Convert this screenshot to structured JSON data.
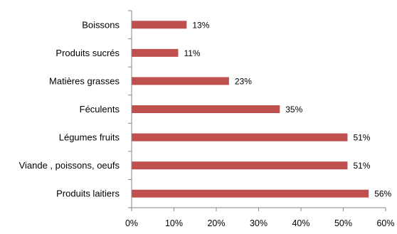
{
  "chart_data": {
    "type": "bar",
    "orientation": "horizontal",
    "categories": [
      "Boissons",
      "Produits sucrés",
      "Matières grasses",
      "Féculents",
      "Légumes fruits",
      "Viande , poissons, oeufs",
      "Produits laitiers"
    ],
    "values": [
      13,
      11,
      23,
      35,
      51,
      51,
      56
    ],
    "data_labels": [
      "13%",
      "11%",
      "23%",
      "35%",
      "51%",
      "51%",
      "56%"
    ],
    "xlim": [
      0,
      60
    ],
    "x_ticks": [
      0,
      10,
      20,
      30,
      40,
      50,
      60
    ],
    "x_tick_labels": [
      "0%",
      "10%",
      "20%",
      "30%",
      "40%",
      "50%",
      "60%"
    ],
    "title": "",
    "xlabel": "",
    "ylabel": "",
    "grid": false,
    "legend": "none",
    "bar_color": "#c0504d",
    "axis_color": "#868686"
  }
}
